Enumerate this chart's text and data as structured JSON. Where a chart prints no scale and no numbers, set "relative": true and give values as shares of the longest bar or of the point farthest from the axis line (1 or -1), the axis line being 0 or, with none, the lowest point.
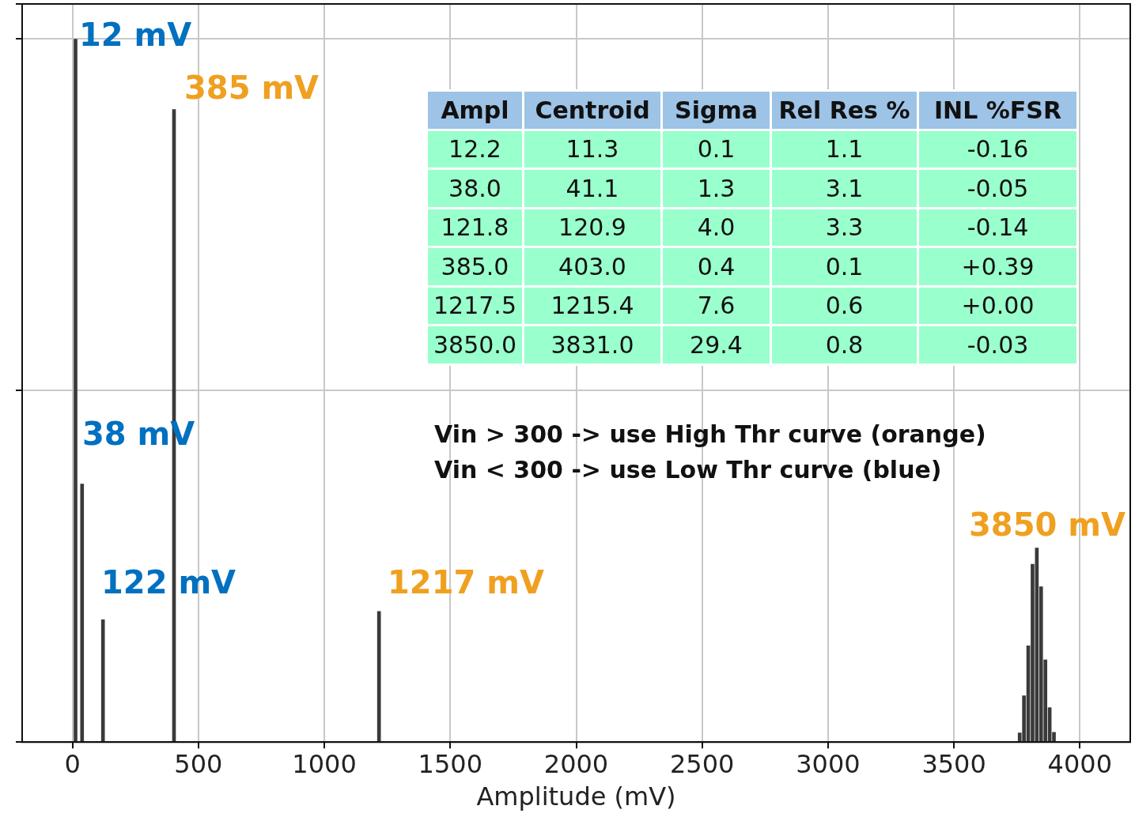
{
  "chart_data": {
    "type": "bar",
    "xlabel": "Amplitude (mV)",
    "relative": true,
    "color": "#3a3a3a",
    "x": [
      12,
      38,
      121,
      403,
      1217,
      3761,
      3778,
      3795,
      3812,
      3829,
      3846,
      3863,
      3880,
      3897
    ],
    "values": [
      1,
      0.367,
      0.174,
      0.9,
      0.186,
      0.013,
      0.066,
      0.137,
      0.253,
      0.276,
      0.221,
      0.117,
      0.049,
      0.014
    ],
    "xlim": [
      -200,
      4200
    ],
    "xticks": [
      0,
      500,
      1000,
      1500,
      2000,
      2500,
      3000,
      3500,
      4000
    ],
    "grid": true,
    "annotations": [
      "12 mV",
      "38 mV",
      "122 mV",
      "385 mV",
      "1217 mV",
      "3850 mV",
      "Ampl",
      "Centroid",
      "Sigma",
      "Rel Res %",
      "INL %FSR",
      "12.2",
      "11.3",
      "0.1",
      "1.1",
      "-0.16",
      "38.0",
      "41.1",
      "1.3",
      "3.1",
      "-0.05",
      "121.8",
      "120.9",
      "4.0",
      "3.3",
      "-0.14",
      "385.0",
      "403.0",
      "0.4",
      "0.1",
      "+0.39",
      "1217.5",
      "1215.4",
      "7.6",
      "0.6",
      "+0.00",
      "3850.0",
      "3831.0",
      "29.4",
      "0.8",
      "-0.03",
      "Vin > 300 -> use High Thr curve (orange)",
      "Vin < 300 -> use Low Thr curve (blue)"
    ]
  }
}
